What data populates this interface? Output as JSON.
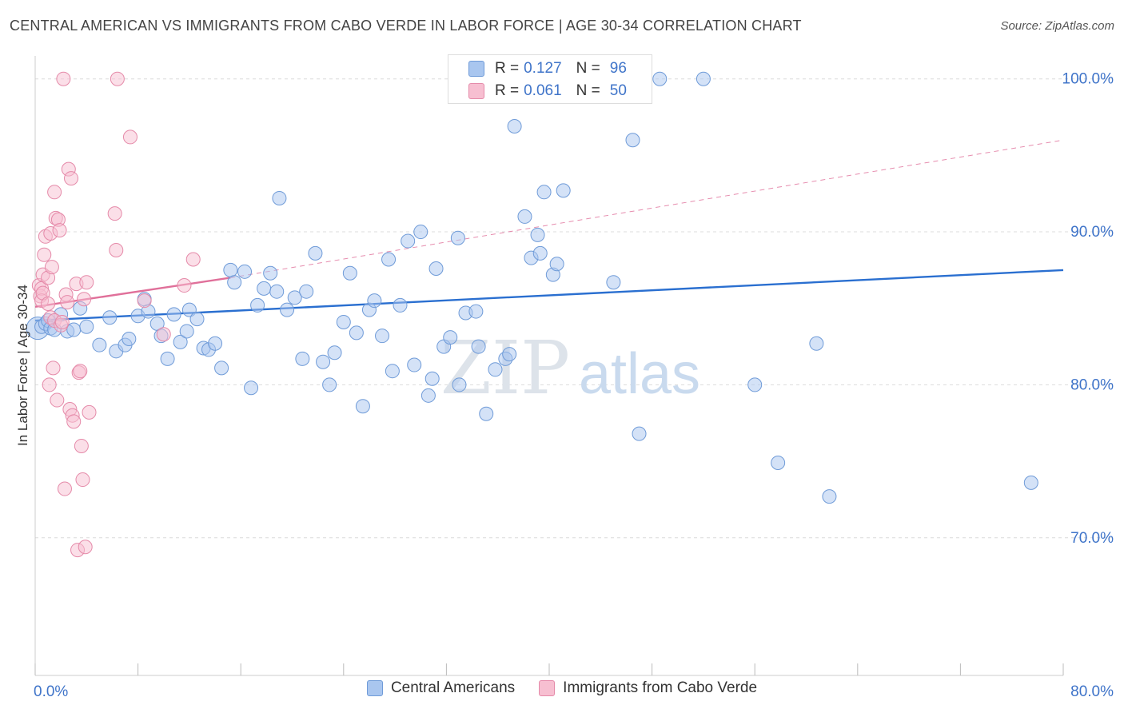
{
  "header": {
    "title": "CENTRAL AMERICAN VS IMMIGRANTS FROM CABO VERDE IN LABOR FORCE | AGE 30-34 CORRELATION CHART",
    "source": "Source: ZipAtlas.com"
  },
  "watermark": {
    "zip": "ZIP",
    "atlas": "atlas"
  },
  "stats": [
    {
      "r_label": "R =",
      "r_value": "0.127",
      "n_label": "N =",
      "n_value": "96",
      "color": "#a9c6ef",
      "border": "#6f9bd8"
    },
    {
      "r_label": "R =",
      "r_value": "0.061",
      "n_label": "N =",
      "n_value": "50",
      "color": "#f7bfd1",
      "border": "#e58aa9"
    }
  ],
  "legend": [
    {
      "label": "Central Americans",
      "color": "#a9c6ef",
      "border": "#6f9bd8"
    },
    {
      "label": "Immigrants from Cabo Verde",
      "color": "#f7bfd1",
      "border": "#e58aa9"
    }
  ],
  "chart_data": {
    "type": "scatter",
    "title": "CENTRAL AMERICAN VS IMMIGRANTS FROM CABO VERDE IN LABOR FORCE | AGE 30-34 CORRELATION CHART",
    "xlabel": "",
    "ylabel": "In Labor Force | Age 30-34",
    "xlim": [
      0,
      80
    ],
    "ylim": [
      61,
      101.5
    ],
    "x_tick_labels": [
      "0.0%",
      "80.0%"
    ],
    "y_ticks": [
      70,
      80,
      90,
      100
    ],
    "y_tick_labels": [
      "70.0%",
      "80.0%",
      "90.0%",
      "100.0%"
    ],
    "grid": true,
    "series": [
      {
        "name": "Central Americans",
        "color": "#a9c6ef",
        "stroke": "#6f9bd8",
        "line_color": "#2a6fd0",
        "trend": {
          "x": [
            0,
            80
          ],
          "y": [
            84.2,
            87.5
          ]
        },
        "points": [
          [
            0.5,
            83.8
          ],
          [
            0.8,
            84.0
          ],
          [
            1.0,
            84.2
          ],
          [
            1.2,
            83.7
          ],
          [
            1.5,
            83.6
          ],
          [
            2.0,
            84.6
          ],
          [
            2.5,
            83.5
          ],
          [
            3.0,
            83.6
          ],
          [
            3.5,
            85.0
          ],
          [
            4.0,
            83.8
          ],
          [
            5.0,
            82.6
          ],
          [
            5.8,
            84.4
          ],
          [
            6.3,
            82.2
          ],
          [
            7.0,
            82.6
          ],
          [
            7.3,
            83.0
          ],
          [
            8.0,
            84.5
          ],
          [
            8.5,
            85.6
          ],
          [
            8.8,
            84.8
          ],
          [
            9.5,
            84.0
          ],
          [
            9.8,
            83.2
          ],
          [
            10.3,
            81.7
          ],
          [
            10.8,
            84.6
          ],
          [
            11.3,
            82.8
          ],
          [
            11.8,
            83.5
          ],
          [
            12.0,
            84.9
          ],
          [
            12.6,
            84.3
          ],
          [
            13.1,
            82.4
          ],
          [
            13.5,
            82.3
          ],
          [
            14.0,
            82.7
          ],
          [
            14.5,
            81.1
          ],
          [
            15.2,
            87.5
          ],
          [
            15.5,
            86.7
          ],
          [
            16.3,
            87.4
          ],
          [
            16.8,
            79.8
          ],
          [
            17.3,
            85.2
          ],
          [
            17.8,
            86.3
          ],
          [
            18.3,
            87.3
          ],
          [
            18.8,
            86.1
          ],
          [
            19.0,
            92.2
          ],
          [
            19.6,
            84.9
          ],
          [
            20.2,
            85.7
          ],
          [
            20.8,
            81.7
          ],
          [
            21.1,
            86.1
          ],
          [
            21.8,
            88.6
          ],
          [
            22.4,
            81.5
          ],
          [
            22.9,
            80.0
          ],
          [
            23.3,
            82.1
          ],
          [
            24.0,
            84.1
          ],
          [
            24.5,
            87.3
          ],
          [
            25.0,
            83.4
          ],
          [
            25.5,
            78.6
          ],
          [
            26.0,
            84.9
          ],
          [
            26.4,
            85.5
          ],
          [
            27.0,
            83.2
          ],
          [
            27.5,
            88.2
          ],
          [
            27.8,
            80.9
          ],
          [
            28.4,
            85.2
          ],
          [
            29.0,
            89.4
          ],
          [
            29.5,
            81.3
          ],
          [
            30.0,
            90.0
          ],
          [
            30.6,
            79.3
          ],
          [
            30.9,
            80.4
          ],
          [
            31.2,
            87.6
          ],
          [
            31.8,
            82.5
          ],
          [
            32.3,
            83.1
          ],
          [
            32.9,
            89.6
          ],
          [
            33.0,
            80.0
          ],
          [
            33.5,
            84.7
          ],
          [
            34.3,
            84.8
          ],
          [
            34.5,
            82.5
          ],
          [
            35.1,
            78.1
          ],
          [
            35.8,
            81.0
          ],
          [
            36.0,
            100.0
          ],
          [
            36.6,
            81.7
          ],
          [
            36.9,
            82.0
          ],
          [
            37.3,
            96.9
          ],
          [
            38.1,
            91.0
          ],
          [
            38.6,
            88.3
          ],
          [
            39.1,
            89.8
          ],
          [
            39.3,
            88.6
          ],
          [
            39.6,
            92.6
          ],
          [
            40.3,
            87.2
          ],
          [
            40.6,
            87.9
          ],
          [
            41.1,
            92.7
          ],
          [
            43.1,
            100.0
          ],
          [
            45.0,
            86.7
          ],
          [
            46.5,
            96.0
          ],
          [
            47.0,
            76.8
          ],
          [
            48.6,
            100.0
          ],
          [
            52.0,
            100.0
          ],
          [
            56.0,
            80.0
          ],
          [
            57.8,
            74.9
          ],
          [
            60.8,
            82.7
          ],
          [
            61.8,
            72.7
          ],
          [
            77.5,
            73.6
          ]
        ],
        "large_points": [
          [
            0.2,
            83.7
          ]
        ]
      },
      {
        "name": "Immigrants from Cabo Verde",
        "color": "#f7bfd1",
        "stroke": "#e58aa9",
        "line_color": "#e0709a",
        "trend": {
          "x": [
            0,
            15.2
          ],
          "y": [
            85.1,
            87.0
          ]
        },
        "trend_extension": {
          "x": [
            15.2,
            80
          ],
          "y": [
            87.0,
            96.0
          ]
        },
        "points": [
          [
            0.3,
            86.5
          ],
          [
            0.4,
            85.8
          ],
          [
            0.5,
            86.3
          ],
          [
            0.5,
            85.5
          ],
          [
            0.6,
            86.0
          ],
          [
            0.6,
            87.2
          ],
          [
            0.7,
            88.5
          ],
          [
            0.8,
            89.7
          ],
          [
            1.0,
            87.0
          ],
          [
            1.0,
            85.3
          ],
          [
            1.1,
            80.0
          ],
          [
            1.2,
            89.9
          ],
          [
            1.2,
            84.4
          ],
          [
            1.3,
            87.7
          ],
          [
            1.4,
            81.1
          ],
          [
            1.5,
            92.6
          ],
          [
            1.5,
            84.2
          ],
          [
            1.6,
            90.9
          ],
          [
            1.7,
            79.0
          ],
          [
            1.8,
            90.8
          ],
          [
            1.9,
            90.1
          ],
          [
            2.0,
            83.9
          ],
          [
            2.1,
            84.1
          ],
          [
            2.2,
            100.0
          ],
          [
            2.3,
            73.2
          ],
          [
            2.4,
            85.9
          ],
          [
            2.5,
            85.4
          ],
          [
            2.6,
            94.1
          ],
          [
            2.7,
            78.4
          ],
          [
            2.8,
            93.5
          ],
          [
            2.9,
            78.0
          ],
          [
            3.0,
            77.6
          ],
          [
            3.2,
            86.6
          ],
          [
            3.3,
            69.2
          ],
          [
            3.4,
            80.8
          ],
          [
            3.5,
            80.9
          ],
          [
            3.6,
            76.0
          ],
          [
            3.7,
            73.8
          ],
          [
            3.8,
            85.6
          ],
          [
            3.9,
            69.4
          ],
          [
            4.0,
            86.7
          ],
          [
            4.2,
            78.2
          ],
          [
            6.2,
            91.2
          ],
          [
            6.3,
            88.8
          ],
          [
            6.4,
            100.0
          ],
          [
            7.4,
            96.2
          ],
          [
            8.5,
            85.5
          ],
          [
            10.0,
            83.3
          ],
          [
            11.6,
            86.5
          ],
          [
            12.3,
            88.2
          ]
        ]
      }
    ]
  }
}
